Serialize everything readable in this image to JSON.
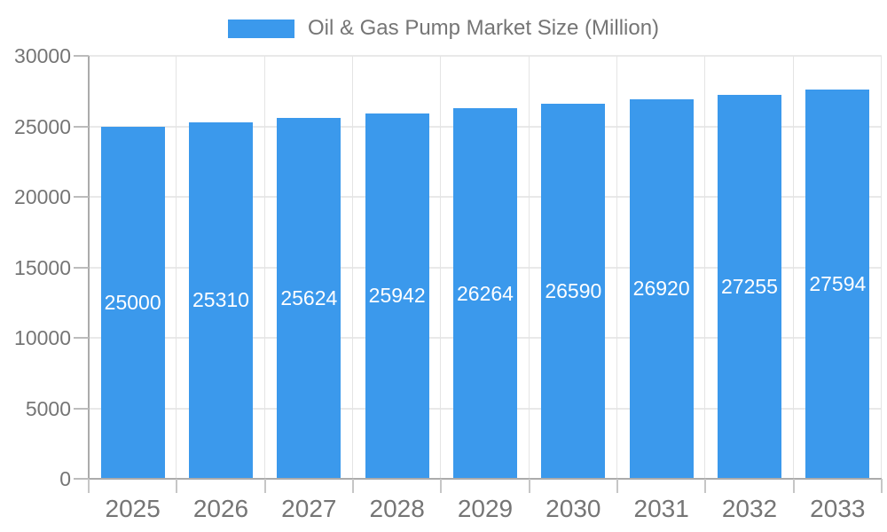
{
  "legend": {
    "label": "Oil & Gas Pump Market Size (Million)",
    "swatch_color": "#3B99EC"
  },
  "chart_data": {
    "type": "bar",
    "title": "Oil & Gas Pump Market Size (Million)",
    "series_name": "Oil & Gas Pump Market Size (Million)",
    "categories": [
      "2025",
      "2026",
      "2027",
      "2028",
      "2029",
      "2030",
      "2031",
      "2032",
      "2033"
    ],
    "values": [
      25000,
      25310,
      25624,
      25942,
      26264,
      26590,
      26920,
      27255,
      27594
    ],
    "bar_value_labels": [
      "25000",
      "25310",
      "25624",
      "25942",
      "26264",
      "26590",
      "26920",
      "27255",
      "27594"
    ],
    "xlabel": "",
    "ylabel": "",
    "ylim": [
      0,
      30000
    ],
    "yticks": [
      0,
      5000,
      10000,
      15000,
      20000,
      25000,
      30000
    ],
    "ytick_labels": [
      "0",
      "5000",
      "10000",
      "15000",
      "20000",
      "25000",
      "30000"
    ],
    "grid": true,
    "legend_position": "top",
    "colors": {
      "bar": "#3B99EC",
      "bar_label": "#ffffff",
      "axis": "#ababab",
      "gridline": "#e9e9e9",
      "tick_text": "#757575",
      "background": "#ffffff"
    }
  }
}
